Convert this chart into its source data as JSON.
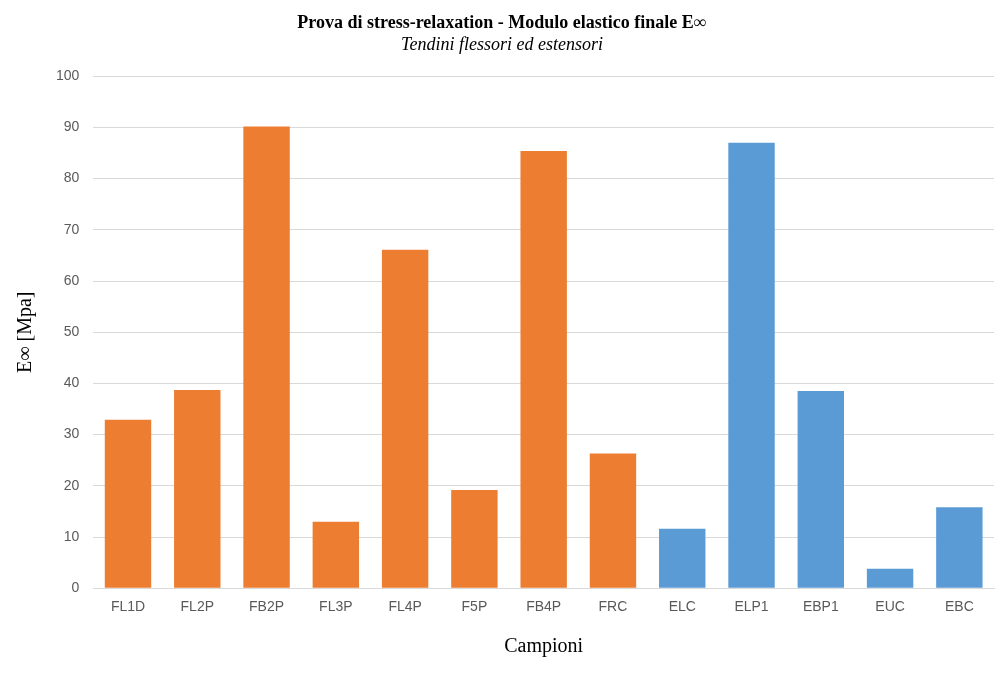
{
  "chart_data": {
    "type": "bar",
    "title": "Prova di stress-relaxation - Modulo elastico finale E∞",
    "subtitle": "Tendini flessori ed estensori",
    "xlabel": "Campioni",
    "ylabel": "E∞ [Mpa]",
    "categories": [
      "FL1D",
      "FL2P",
      "FB2P",
      "FL3P",
      "FL4P",
      "F5P",
      "FB4P",
      "FRC",
      "ELC",
      "ELP1",
      "EBP1",
      "EUC",
      "EBC"
    ],
    "values": [
      32.9,
      38.7,
      90.2,
      13.0,
      66.1,
      19.2,
      85.4,
      26.3,
      11.6,
      87.0,
      38.5,
      3.8,
      15.8
    ],
    "colors": [
      "#ed7d31",
      "#ed7d31",
      "#ed7d31",
      "#ed7d31",
      "#ed7d31",
      "#ed7d31",
      "#ed7d31",
      "#ed7d31",
      "#5b9bd5",
      "#5b9bd5",
      "#5b9bd5",
      "#5b9bd5",
      "#5b9bd5"
    ],
    "ylim": [
      0,
      100
    ],
    "yticks": [
      0,
      10,
      20,
      30,
      40,
      50,
      60,
      70,
      80,
      90,
      100
    ],
    "grid": "y",
    "legend": false
  }
}
